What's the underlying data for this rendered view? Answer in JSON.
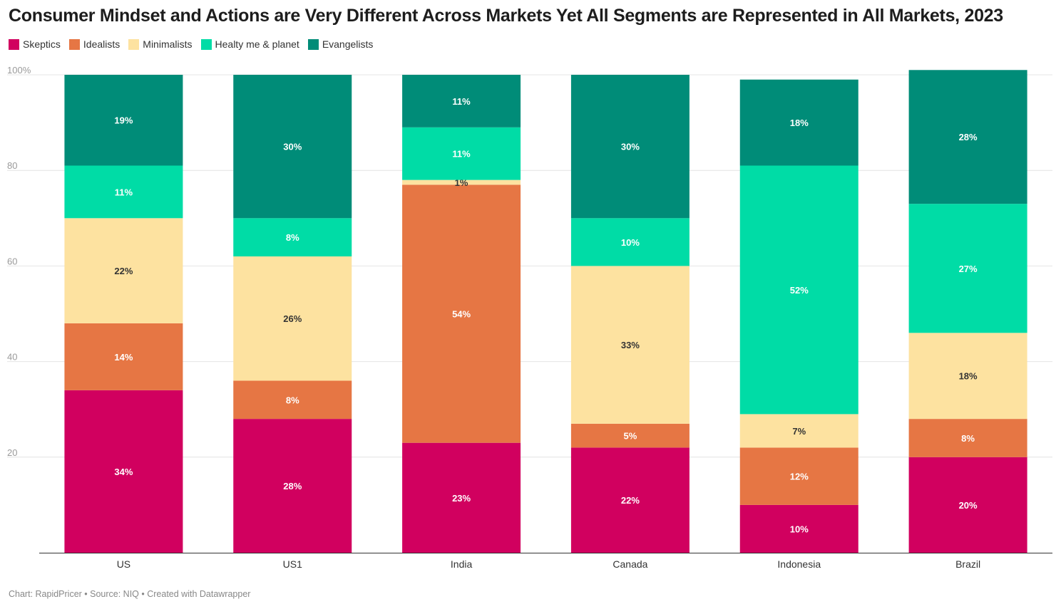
{
  "title": "Consumer Mindset and Actions are Very Different Across Markets Yet All Segments are Represented in All Markets, 2023",
  "footer": "Chart: RapidPricer • Source: NIQ • Created with Datawrapper",
  "chart_data": {
    "type": "bar",
    "stacked": true,
    "categories": [
      "US",
      "US1",
      "India",
      "Canada",
      "Indonesia",
      "Brazil"
    ],
    "series": [
      {
        "name": "Skeptics",
        "color": "#d1005f",
        "values": [
          34,
          28,
          23,
          22,
          10,
          20
        ],
        "labels": [
          "34%",
          "28%",
          "23%",
          "22%",
          "10%",
          "20%"
        ]
      },
      {
        "name": "Idealists",
        "color": "#e67644",
        "values": [
          14,
          8,
          54,
          5,
          12,
          8
        ],
        "labels": [
          "14%",
          "8%",
          "54%",
          "5%",
          "12%",
          "8%"
        ]
      },
      {
        "name": "Minimalists",
        "color": "#fde2a0",
        "values": [
          22,
          26,
          1,
          33,
          7,
          18
        ],
        "labels": [
          "22%",
          "26%",
          "1%",
          "33%",
          "7%",
          "18%"
        ]
      },
      {
        "name": "Healty me & planet",
        "color": "#00dca6",
        "values": [
          11,
          8,
          11,
          10,
          52,
          27
        ],
        "labels": [
          "11%",
          "8%",
          "11%",
          "10%",
          "52%",
          "27%"
        ]
      },
      {
        "name": "Evangelists",
        "color": "#008c78",
        "values": [
          19,
          30,
          11,
          30,
          18,
          28
        ],
        "labels": [
          "19%",
          "30%",
          "11%",
          "30%",
          "18%",
          "28%"
        ]
      }
    ],
    "ylim": [
      0,
      100
    ],
    "yticks": [
      20,
      40,
      60,
      80
    ],
    "ytick_top_label": "100%",
    "grid": true,
    "legend_position": "top-left"
  }
}
